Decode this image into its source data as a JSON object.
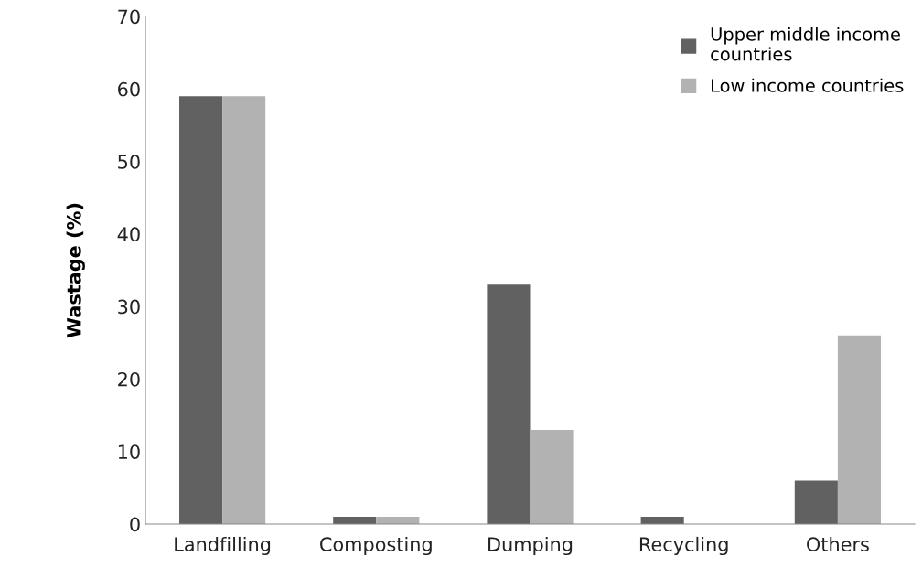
{
  "chart_data": {
    "type": "bar",
    "ylabel": "Wastage (%)",
    "categories": [
      "Landfilling",
      "Composting",
      "Dumping",
      "Recycling",
      "Others"
    ],
    "series": [
      {
        "name": "Upper middle income\ncountries",
        "color": "#616161",
        "values": [
          59,
          1,
          33,
          1,
          6
        ]
      },
      {
        "name": "Low income countries",
        "color": "#b2b2b2",
        "values": [
          59,
          1,
          13,
          0,
          26
        ]
      }
    ],
    "ylim": [
      0,
      70
    ],
    "yticks": [
      0,
      10,
      20,
      30,
      40,
      50,
      60,
      70
    ],
    "grid": false,
    "legend": "top right"
  }
}
